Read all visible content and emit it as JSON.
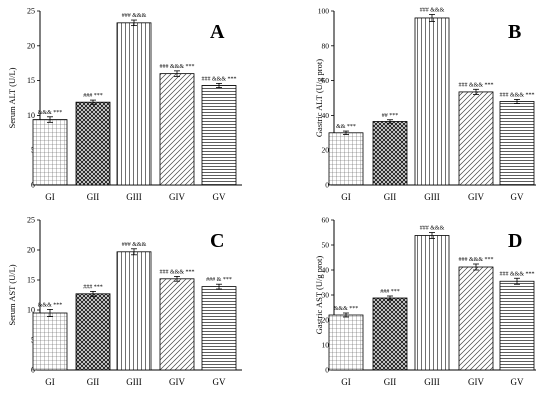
{
  "chart_data": [
    {
      "panel": "A",
      "type": "bar",
      "ylabel": "Serum ALT (U/L)",
      "ylim": [
        0,
        25
      ],
      "yticks": [
        0,
        5,
        10,
        15,
        20,
        25
      ],
      "categories": [
        "GI",
        "GII",
        "GIII",
        "GIV",
        "GV"
      ],
      "values": [
        9.4,
        11.9,
        23.3,
        16.0,
        14.3
      ],
      "errors": [
        0.4,
        0.3,
        0.4,
        0.4,
        0.3
      ],
      "annotations": [
        "&&& ***",
        "### ***",
        "### &&&",
        "### &&& ***",
        "### &&& ***"
      ],
      "patterns": [
        "grid",
        "crosshatch",
        "vertical",
        "diagonal",
        "horizontal"
      ]
    },
    {
      "panel": "B",
      "type": "bar",
      "ylabel": "Gastric ALT (U/g prot)",
      "ylim": [
        0,
        100
      ],
      "yticks": [
        0,
        20,
        40,
        60,
        80,
        100
      ],
      "categories": [
        "GI",
        "GII",
        "GIII",
        "GIV",
        "GV"
      ],
      "values": [
        30,
        36.5,
        96,
        53.5,
        48
      ],
      "errors": [
        1.0,
        1.0,
        2.0,
        1.5,
        1.2
      ],
      "annotations": [
        "&& ***",
        "## ***",
        "### &&&",
        "### &&& ***",
        "### &&& ***"
      ],
      "patterns": [
        "grid",
        "crosshatch",
        "vertical",
        "diagonal",
        "horizontal"
      ]
    },
    {
      "panel": "C",
      "type": "bar",
      "ylabel": "Serum AST (U/L)",
      "ylim": [
        0,
        25
      ],
      "yticks": [
        0,
        5,
        10,
        15,
        20,
        25
      ],
      "categories": [
        "GI",
        "GII",
        "GIII",
        "GIV",
        "GV"
      ],
      "values": [
        9.5,
        12.7,
        19.7,
        15.2,
        13.9
      ],
      "errors": [
        0.6,
        0.4,
        0.5,
        0.4,
        0.4
      ],
      "annotations": [
        "&&& ***",
        "### ***",
        "### &&&",
        "### &&& ***",
        "### & ***"
      ],
      "patterns": [
        "grid",
        "crosshatch",
        "vertical",
        "diagonal",
        "horizontal"
      ]
    },
    {
      "panel": "D",
      "type": "bar",
      "ylabel": "Gastric AST (U/g prot)",
      "ylim": [
        0,
        60
      ],
      "yticks": [
        0,
        10,
        20,
        30,
        40,
        50,
        60
      ],
      "categories": [
        "GI",
        "GII",
        "GIII",
        "GIV",
        "GV"
      ],
      "values": [
        22,
        28.8,
        53.8,
        41.2,
        35.5
      ],
      "errors": [
        0.8,
        0.8,
        1.2,
        1.2,
        1.2
      ],
      "annotations": [
        "&&& ***",
        "### ***",
        "### &&&",
        "### &&& ***",
        "### &&& ***"
      ],
      "patterns": [
        "grid",
        "crosshatch",
        "vertical",
        "diagonal",
        "horizontal"
      ]
    }
  ]
}
